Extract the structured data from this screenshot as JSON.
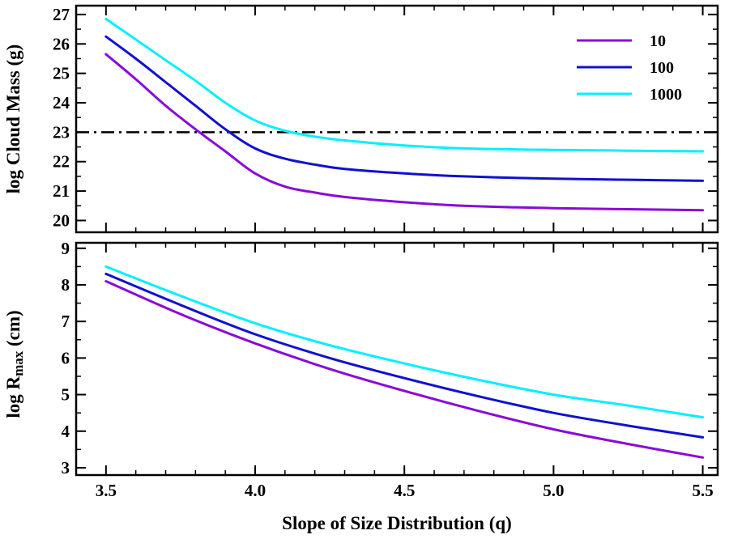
{
  "chart_data": [
    {
      "type": "line",
      "panel": "top",
      "ylabel": "log Cloud Mass (g)",
      "xlim": [
        3.4,
        5.55
      ],
      "ylim": [
        19.6,
        27.3
      ],
      "yticks": [
        20,
        21,
        22,
        23,
        24,
        25,
        26,
        27
      ],
      "reference_line": {
        "y": 23,
        "style": "dash-dot",
        "color": "#000000"
      },
      "legend": {
        "position": "top-right",
        "entries": [
          "10",
          "100",
          "1000"
        ]
      },
      "series": [
        {
          "name": "10",
          "color": "#8a0ad6",
          "x": [
            3.5,
            3.6,
            3.7,
            3.8,
            3.9,
            4.0,
            4.1,
            4.2,
            4.3,
            4.5,
            4.7,
            5.0,
            5.5
          ],
          "y": [
            25.65,
            24.8,
            23.9,
            23.1,
            22.35,
            21.6,
            21.15,
            20.95,
            20.8,
            20.62,
            20.5,
            20.42,
            20.35
          ]
        },
        {
          "name": "100",
          "color": "#1010d0",
          "x": [
            3.5,
            3.6,
            3.7,
            3.8,
            3.9,
            4.0,
            4.1,
            4.2,
            4.3,
            4.5,
            4.7,
            5.0,
            5.5
          ],
          "y": [
            26.25,
            25.5,
            24.7,
            23.9,
            23.1,
            22.45,
            22.1,
            21.9,
            21.75,
            21.6,
            21.5,
            21.42,
            21.35
          ]
        },
        {
          "name": "1000",
          "color": "#00f0ff",
          "x": [
            3.5,
            3.6,
            3.7,
            3.8,
            3.9,
            4.0,
            4.1,
            4.2,
            4.3,
            4.5,
            4.7,
            5.0,
            5.5
          ],
          "y": [
            26.85,
            26.15,
            25.45,
            24.75,
            24.0,
            23.4,
            23.05,
            22.85,
            22.72,
            22.55,
            22.45,
            22.4,
            22.35
          ]
        }
      ]
    },
    {
      "type": "line",
      "panel": "bottom",
      "ylabel": "log R",
      "ylabel_sub": "max",
      "ylabel_suffix": " (cm)",
      "xlabel": "Slope of Size Distribution (q)",
      "xlim": [
        3.4,
        5.55
      ],
      "ylim": [
        2.8,
        9.15
      ],
      "yticks": [
        3,
        4,
        5,
        6,
        7,
        8,
        9
      ],
      "xticks": [
        "3.5",
        "4.0",
        "4.5",
        "5.0",
        "5.5"
      ],
      "series": [
        {
          "name": "10",
          "color": "#8a0ad6",
          "x": [
            3.5,
            3.75,
            4.0,
            4.25,
            4.5,
            4.75,
            5.0,
            5.25,
            5.5
          ],
          "y": [
            8.1,
            7.2,
            6.4,
            5.7,
            5.1,
            4.55,
            4.05,
            3.65,
            3.28
          ]
        },
        {
          "name": "100",
          "color": "#1010d0",
          "x": [
            3.5,
            3.75,
            4.0,
            4.25,
            4.5,
            4.75,
            5.0,
            5.25,
            5.5
          ],
          "y": [
            8.3,
            7.45,
            6.65,
            6.0,
            5.45,
            4.95,
            4.5,
            4.15,
            3.83
          ]
        },
        {
          "name": "1000",
          "color": "#00f0ff",
          "x": [
            3.5,
            3.75,
            4.0,
            4.25,
            4.5,
            4.75,
            5.0,
            5.25,
            5.5
          ],
          "y": [
            8.5,
            7.7,
            6.95,
            6.35,
            5.85,
            5.4,
            5.0,
            4.7,
            4.38
          ]
        }
      ]
    }
  ]
}
